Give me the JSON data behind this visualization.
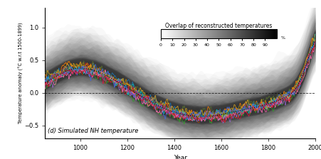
{
  "title": "(d) Simulated NH temperature",
  "xlabel": "Year",
  "ylabel": "Temperature anomaly (°C w.r.t 1500-1899)",
  "colorbar_label": "Overlap of reconstructed temperatures",
  "xlim": [
    850,
    2000
  ],
  "ylim": [
    -0.7,
    1.3
  ],
  "yticks": [
    -0.5,
    0.0,
    0.5,
    1.0
  ],
  "xticks": [
    1000,
    1200,
    1400,
    1600,
    1800,
    2000
  ],
  "background_color": "#ffffff",
  "line_colors": [
    "#e31a1c",
    "#ff7f00",
    "#33a02c",
    "#1f78b4",
    "#9966cc",
    "#8B4513",
    "#00ced1",
    "#ff69b4",
    "#556b2f",
    "#daa520",
    "#4169e1",
    "#dc143c"
  ],
  "seed": 42
}
